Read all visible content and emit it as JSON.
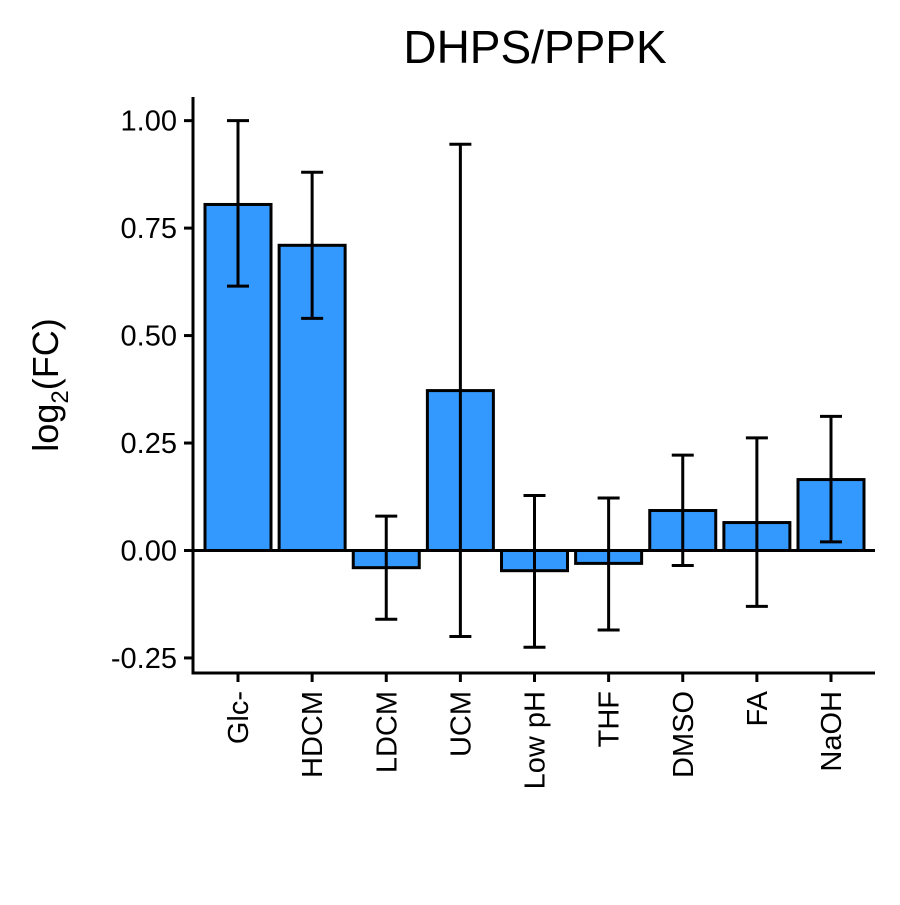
{
  "chart_data": {
    "type": "bar",
    "title": "DHPS/PPPK",
    "ylabel": "log",
    "ylabel_subscript": "2",
    "ylabel_suffix": "(FC)",
    "xlabel": "",
    "categories": [
      "Glc-",
      "HDCM",
      "LDCM",
      "UCM",
      "Low pH",
      "THF",
      "DMSO",
      "FA",
      "NaOH"
    ],
    "values": [
      0.805,
      0.71,
      -0.04,
      0.372,
      -0.047,
      -0.03,
      0.093,
      0.065,
      0.165
    ],
    "err_low": [
      0.615,
      0.54,
      -0.16,
      -0.2,
      -0.225,
      -0.185,
      -0.035,
      -0.13,
      0.02
    ],
    "err_high": [
      1.0,
      0.88,
      0.08,
      0.945,
      0.128,
      0.122,
      0.222,
      0.262,
      0.312
    ],
    "ylim": [
      -0.285,
      1.055
    ],
    "yticks": [
      1.0,
      0.75,
      0.5,
      0.25,
      0.0,
      -0.25
    ],
    "ytick_labels": [
      "1.00",
      "0.75",
      "0.50",
      "0.25",
      "0.00",
      "-0.25"
    ],
    "bar_color": "#3399FF",
    "edge_color": "#000000",
    "grid": false,
    "legend": "none"
  }
}
